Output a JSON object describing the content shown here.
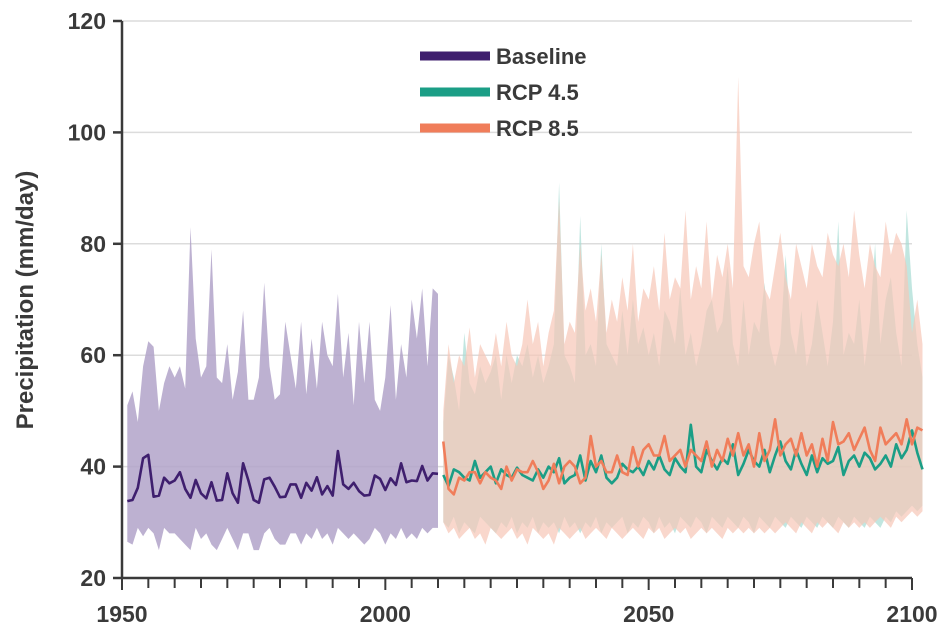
{
  "chart_data": {
    "type": "line",
    "xlabel": "",
    "ylabel": "Precipitation (mm/day)",
    "xlim": [
      1950,
      2100
    ],
    "ylim": [
      20,
      120
    ],
    "xticks": [
      1950,
      2000,
      2050,
      2100
    ],
    "yticks": [
      20,
      40,
      60,
      80,
      100,
      120
    ],
    "grid": "horizontal",
    "legend_position": "top-center",
    "series": [
      {
        "name": "Baseline",
        "color": "#3f1f6e",
        "band_color": "#b2a3c9",
        "x_start": 1951,
        "mean": [
          33.8,
          34,
          36.2,
          41.5,
          42.1,
          34.6,
          34.8,
          38,
          37,
          37.5,
          39,
          36,
          34.4,
          37.6,
          35.2,
          34.3,
          37.2,
          33.9,
          34,
          38.8,
          35.2,
          33.5,
          40.6,
          37.5,
          34,
          33.5,
          37.7,
          38,
          36.4,
          34.5,
          34.6,
          36.8,
          36.8,
          34.4,
          37.1,
          35.7,
          38.1,
          35,
          36.5,
          34.8,
          42.8,
          36.8,
          36,
          37.1,
          35.6,
          34.8,
          34.9,
          38.4,
          37.8,
          35.8,
          37.9,
          36.7,
          40.6,
          37.2,
          37.5,
          37.4,
          40.1,
          37.5,
          38.8,
          38.7
        ],
        "upper": [
          51,
          53.5,
          48,
          58,
          62.5,
          61.5,
          50,
          55,
          58,
          56,
          58,
          54,
          83,
          63,
          56,
          58,
          79,
          56,
          55,
          62,
          52,
          57,
          68,
          52,
          52,
          56,
          73,
          58,
          52,
          53,
          66,
          60,
          54,
          66,
          53,
          63,
          54,
          66,
          60,
          58,
          71,
          56,
          64,
          51,
          66,
          55,
          66,
          52,
          50,
          56,
          69,
          52,
          62,
          56,
          70,
          63,
          72,
          58,
          72,
          71
        ],
        "lower": [
          26.5,
          26,
          29,
          27.5,
          29,
          28,
          25,
          29,
          28,
          28,
          27,
          26,
          25,
          29,
          27,
          28,
          26,
          25,
          27,
          29,
          27,
          25,
          28,
          28,
          25,
          25,
          28,
          29,
          27,
          26,
          26,
          28,
          28,
          26,
          28,
          27,
          29,
          27,
          28,
          26,
          29,
          28,
          27,
          28,
          27,
          26,
          27,
          29,
          28,
          26,
          28,
          27,
          29,
          27,
          28,
          27,
          29,
          28,
          29,
          29
        ]
      },
      {
        "name": "RCP 4.5",
        "color": "#1b9e86",
        "band_color": "#a6dcd3",
        "x_start": 2011,
        "mean": [
          38.5,
          36.5,
          39.5,
          39,
          38,
          37.5,
          41,
          38,
          39,
          40,
          37,
          39.5,
          38.5,
          38,
          39.8,
          38.5,
          38,
          37.5,
          39.5,
          38,
          40,
          39,
          41.5,
          37,
          38,
          38.5,
          42,
          37.5,
          41,
          39,
          42,
          38,
          37,
          38,
          40.5,
          39.5,
          39,
          40,
          38.5,
          41,
          39.5,
          42,
          39.5,
          38.5,
          41.5,
          40,
          39,
          47.5,
          40,
          39,
          43,
          41,
          39.5,
          41.5,
          40.5,
          44,
          38.5,
          40.5,
          43,
          41,
          40,
          43,
          39,
          42,
          44.5,
          41,
          39.5,
          43,
          40.5,
          38.5,
          42,
          39,
          41.5,
          40.5,
          41,
          43.5,
          38.5,
          41,
          42,
          40,
          42.5,
          41.5,
          39.5,
          40.5,
          42,
          40,
          44,
          41.5,
          43,
          46.5,
          42.5,
          39.5
        ],
        "upper": [
          48,
          60,
          56,
          50,
          64,
          55,
          53,
          58,
          55,
          57,
          60,
          52,
          60,
          55,
          60,
          58,
          62,
          56,
          60,
          55,
          58,
          62,
          91,
          60,
          58,
          55,
          85,
          60,
          62,
          58,
          80,
          62,
          60,
          58,
          68,
          60,
          70,
          62,
          65,
          60,
          64,
          58,
          68,
          66,
          62,
          72,
          60,
          64,
          58,
          62,
          68,
          70,
          64,
          66,
          76,
          62,
          58,
          70,
          60,
          66,
          64,
          73,
          62,
          58,
          62,
          78,
          64,
          60,
          68,
          58,
          62,
          70,
          64,
          58,
          66,
          84,
          60,
          64,
          62,
          70,
          58,
          66,
          80,
          62,
          70,
          74,
          64,
          58,
          86,
          72,
          62,
          56
        ],
        "lower": [
          30,
          29,
          31,
          28,
          30,
          29,
          28,
          31,
          30,
          29,
          28,
          30,
          29,
          31,
          28,
          30,
          29,
          31,
          28,
          30,
          29,
          30,
          28,
          31,
          29,
          30,
          28,
          30,
          29,
          31,
          28,
          30,
          29,
          30,
          31,
          28,
          30,
          29,
          31,
          30,
          28,
          31,
          29,
          30,
          28,
          31,
          30,
          29,
          31,
          30,
          28,
          31,
          30,
          29,
          31,
          30,
          29,
          31,
          30,
          28,
          31,
          30,
          29,
          31,
          30,
          29,
          31,
          30,
          29,
          31,
          30,
          29,
          31,
          30,
          29,
          31,
          30,
          29,
          31,
          30,
          29,
          31,
          30,
          29,
          31,
          30,
          32,
          31,
          32,
          33,
          32,
          33
        ]
      },
      {
        "name": "RCP 8.5",
        "color": "#f07d5a",
        "band_color": "#f7c6b6",
        "x_start": 2011,
        "mean": [
          44.5,
          36,
          35,
          38,
          37.5,
          39,
          39,
          37,
          39,
          38,
          37.5,
          36,
          40,
          37.5,
          39.5,
          39,
          39,
          41,
          39,
          36,
          37.5,
          40.5,
          37,
          40,
          41,
          40,
          37,
          38,
          45.5,
          40,
          41,
          39,
          39,
          42,
          39,
          38.5,
          43.5,
          40,
          43,
          44,
          42,
          42,
          45.5,
          41,
          42,
          43,
          40,
          43,
          42,
          41,
          44.5,
          40,
          43,
          41,
          45,
          42,
          46,
          42,
          44,
          40,
          46,
          41,
          43,
          48.5,
          42,
          44,
          45,
          42,
          46,
          42,
          44,
          40,
          45,
          41,
          48,
          44,
          44.5,
          46,
          43,
          45,
          47,
          43,
          41,
          47,
          44,
          45,
          46,
          44,
          48.5,
          44,
          47,
          46.5
        ],
        "upper": [
          50,
          62,
          55,
          60,
          58,
          65,
          56,
          62,
          60,
          58,
          64,
          58,
          66,
          60,
          58,
          62,
          70,
          62,
          66,
          58,
          64,
          68,
          88,
          62,
          66,
          64,
          80,
          68,
          72,
          66,
          78,
          64,
          70,
          66,
          74,
          68,
          80,
          66,
          72,
          70,
          76,
          68,
          82,
          70,
          74,
          72,
          86,
          70,
          76,
          72,
          84,
          70,
          78,
          74,
          80,
          72,
          110,
          76,
          74,
          80,
          84,
          72,
          70,
          76,
          82,
          74,
          70,
          80,
          76,
          72,
          80,
          76,
          74,
          82,
          78,
          76,
          80,
          74,
          86,
          78,
          72,
          80,
          76,
          74,
          84,
          78,
          82,
          80,
          76,
          64,
          70,
          62
        ],
        "lower": [
          30,
          28,
          29,
          27,
          28,
          29,
          27,
          28,
          26,
          29,
          28,
          27,
          28,
          29,
          27,
          28,
          26,
          29,
          28,
          27,
          28,
          26,
          29,
          28,
          27,
          28,
          29,
          27,
          28,
          29,
          28,
          27,
          29,
          28,
          27,
          28,
          29,
          28,
          27,
          29,
          28,
          29,
          27,
          28,
          29,
          28,
          29,
          27,
          28,
          29,
          28,
          29,
          28,
          27,
          29,
          28,
          29,
          28,
          29,
          28,
          29,
          28,
          29,
          28,
          29,
          30,
          29,
          28,
          30,
          29,
          28,
          30,
          29,
          30,
          29,
          28,
          30,
          29,
          30,
          29,
          30,
          29,
          30,
          31,
          30,
          29,
          31,
          30,
          31,
          32,
          31,
          32
        ]
      }
    ]
  }
}
